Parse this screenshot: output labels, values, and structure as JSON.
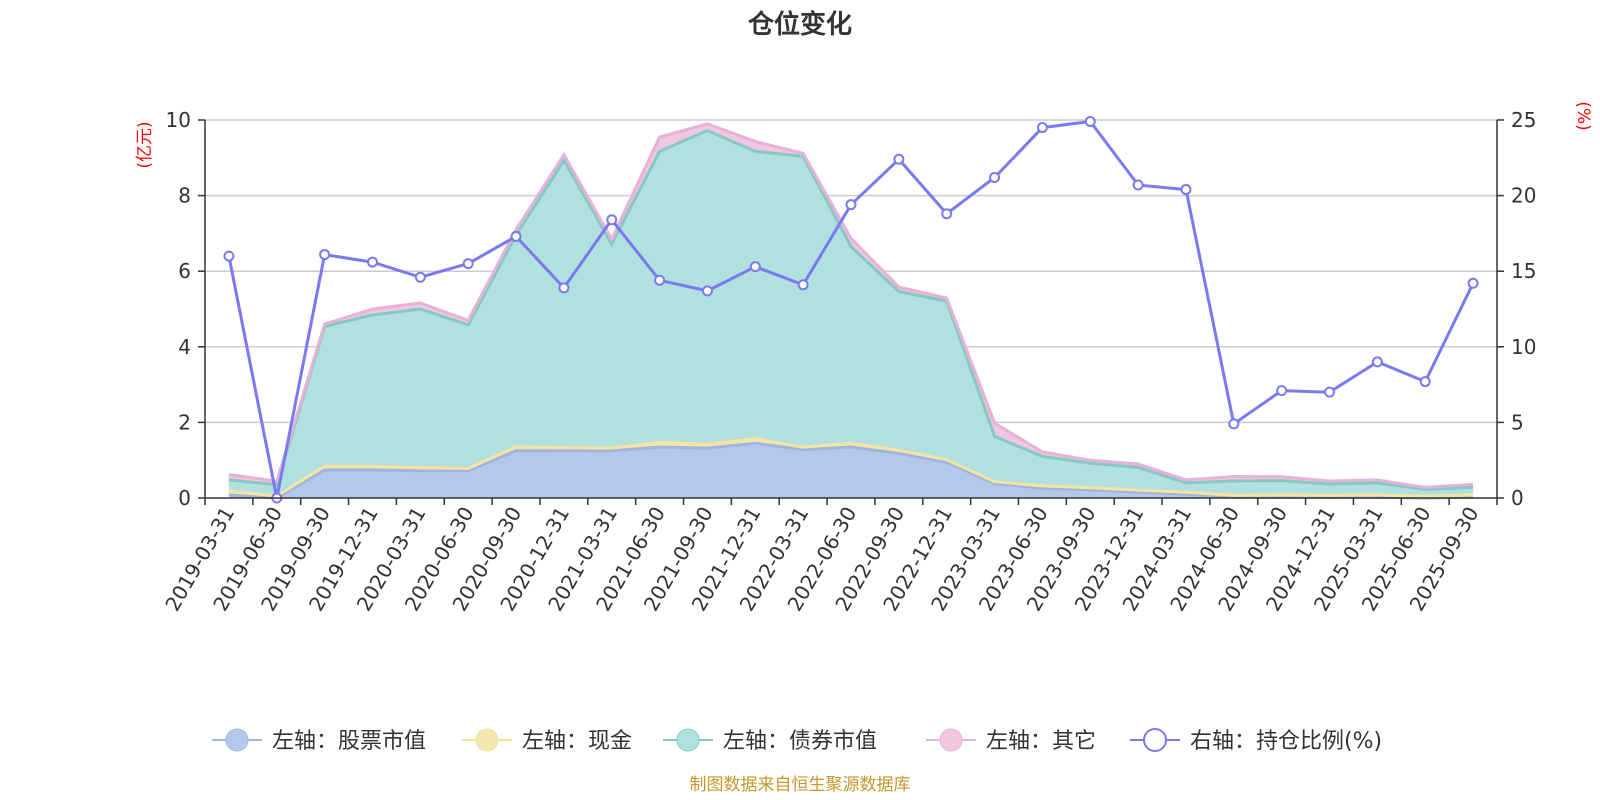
{
  "chart_data": {
    "type": "area",
    "title": "仓位变化",
    "left_axis_unit": "(亿元)",
    "right_axis_unit": "(%)",
    "y_left": {
      "min": 0,
      "max": 10,
      "ticks": [
        "0",
        "2",
        "4",
        "6",
        "8",
        "10"
      ]
    },
    "y_right": {
      "min": 0,
      "max": 25,
      "ticks": [
        "0",
        "5",
        "10",
        "15",
        "20",
        "25"
      ]
    },
    "categories": [
      "2019-03-31",
      "2019-06-30",
      "2019-09-30",
      "2019-12-31",
      "2020-03-31",
      "2020-06-30",
      "2020-09-30",
      "2020-12-31",
      "2021-03-31",
      "2021-06-30",
      "2021-09-30",
      "2021-12-31",
      "2022-03-31",
      "2022-06-30",
      "2022-09-30",
      "2022-12-31",
      "2023-03-31",
      "2023-06-30",
      "2023-09-30",
      "2023-12-31",
      "2024-03-31",
      "2024-06-30",
      "2024-09-30",
      "2024-12-31",
      "2025-03-31",
      "2025-06-30",
      "2025-09-30"
    ],
    "series": [
      {
        "name": "左轴：股票市值",
        "axis": "left",
        "kind": "stack-area",
        "color": "#9db5e0",
        "fill": "#b6c8ea",
        "values": [
          0.08,
          0.0,
          0.74,
          0.74,
          0.72,
          0.72,
          1.25,
          1.25,
          1.25,
          1.35,
          1.32,
          1.45,
          1.28,
          1.35,
          1.18,
          0.95,
          0.38,
          0.26,
          0.22,
          0.16,
          0.1,
          0.02,
          0.02,
          0.02,
          0.02,
          0.0,
          0.02
        ]
      },
      {
        "name": "左轴：现金",
        "axis": "left",
        "kind": "stack-area",
        "color": "#f7e3a0",
        "fill": "#f5e6b0",
        "values": [
          0.1,
          0.05,
          0.1,
          0.1,
          0.08,
          0.06,
          0.1,
          0.08,
          0.07,
          0.12,
          0.1,
          0.12,
          0.06,
          0.1,
          0.08,
          0.06,
          0.05,
          0.06,
          0.05,
          0.05,
          0.05,
          0.05,
          0.06,
          0.05,
          0.06,
          0.05,
          0.06
        ]
      },
      {
        "name": "左轴：债券市值",
        "axis": "left",
        "kind": "stack-area",
        "color": "#84c9c6",
        "fill": "#b2e0df",
        "values": [
          0.3,
          0.3,
          3.7,
          4.0,
          4.2,
          3.8,
          5.6,
          7.6,
          5.4,
          7.7,
          8.3,
          7.6,
          7.7,
          5.2,
          4.2,
          4.2,
          1.2,
          0.78,
          0.65,
          0.6,
          0.25,
          0.38,
          0.38,
          0.3,
          0.32,
          0.18,
          0.2
        ]
      },
      {
        "name": "左轴：其它",
        "axis": "left",
        "kind": "stack-area",
        "color": "#e8b2d8",
        "fill": "#f0c6e0",
        "values": [
          0.14,
          0.1,
          0.06,
          0.16,
          0.16,
          0.12,
          0.15,
          0.15,
          0.13,
          0.38,
          0.18,
          0.26,
          0.08,
          0.22,
          0.12,
          0.08,
          0.35,
          0.12,
          0.08,
          0.09,
          0.08,
          0.12,
          0.1,
          0.08,
          0.08,
          0.05,
          0.08
        ]
      },
      {
        "name": "右轴：持仓比例(%)",
        "axis": "right",
        "kind": "line",
        "color": "#7a7af0",
        "values": [
          16.0,
          0.0,
          16.1,
          15.6,
          14.6,
          15.5,
          17.3,
          13.9,
          18.4,
          14.4,
          13.7,
          15.3,
          14.1,
          19.4,
          22.4,
          18.8,
          21.2,
          24.5,
          24.9,
          20.7,
          20.4,
          4.9,
          7.1,
          7.0,
          9.0,
          7.7,
          14.2
        ]
      }
    ],
    "grid": true,
    "legend_position": "bottom",
    "source_note": "制图数据来自恒生聚源数据库"
  }
}
